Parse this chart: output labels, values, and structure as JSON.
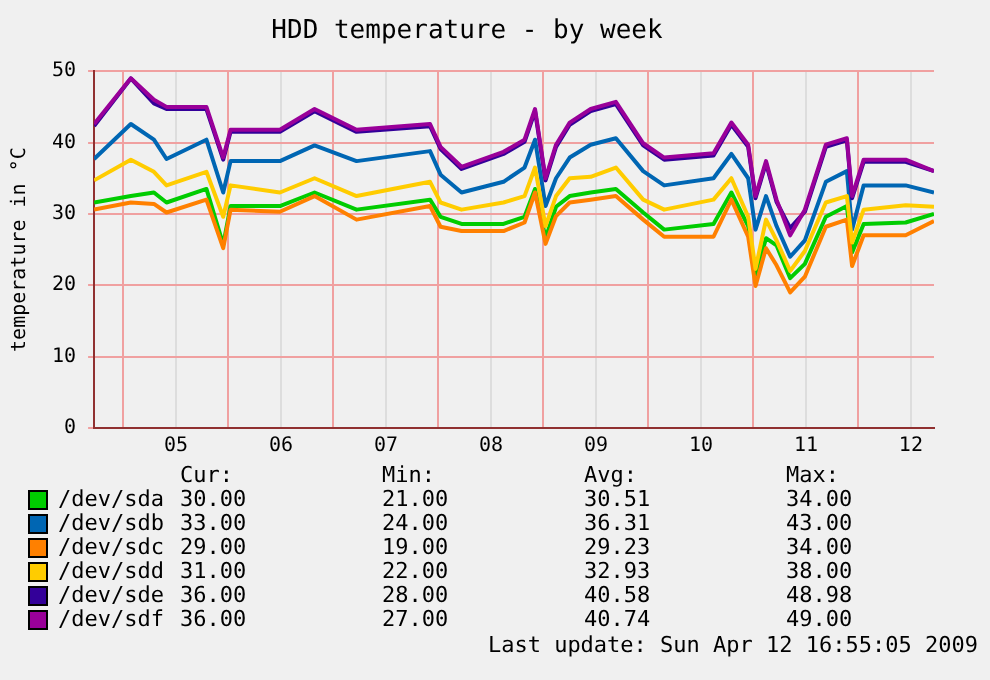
{
  "chart_data": {
    "type": "line",
    "title": "HDD temperature - by week",
    "ylabel": "temperature in °C",
    "x": [
      4.72,
      5.07,
      5.29,
      5.41,
      5.79,
      5.95,
      6.02,
      6.49,
      6.82,
      7.22,
      7.92,
      8.02,
      8.22,
      8.62,
      8.82,
      8.92,
      9.02,
      9.12,
      9.25,
      9.45,
      9.69,
      9.95,
      10.15,
      10.62,
      10.79,
      10.95,
      11.02,
      11.12,
      11.22,
      11.35,
      11.49,
      11.69,
      11.89,
      11.94,
      12.05,
      12.45,
      12.72
    ],
    "series": [
      {
        "name": "/dev/sda",
        "color": "#00cc00",
        "values": [
          31.6,
          32.5,
          33,
          31.6,
          33.5,
          25.7,
          31.1,
          31.1,
          33,
          30.6,
          32,
          29.6,
          28.6,
          28.6,
          29.6,
          33.5,
          26.6,
          31,
          32.5,
          33,
          33.5,
          30.2,
          27.8,
          28.6,
          33,
          28.3,
          21.2,
          26.6,
          25.6,
          21,
          23,
          29.6,
          31.1,
          24.6,
          28.6,
          28.8,
          30
        ]
      },
      {
        "name": "/dev/sdb",
        "color": "#0066b3",
        "values": [
          37.7,
          42.6,
          40.4,
          37.7,
          40.4,
          33,
          37.4,
          37.4,
          39.6,
          37.4,
          38.8,
          35.5,
          33,
          34.5,
          36.5,
          40.4,
          31.1,
          35,
          37.9,
          39.7,
          40.6,
          36,
          34,
          35,
          38.4,
          35,
          27.8,
          32.5,
          28.3,
          24,
          26.3,
          34.5,
          36,
          27.8,
          34,
          34,
          33
        ]
      },
      {
        "name": "/dev/sdc",
        "color": "#ff8000",
        "values": [
          30.6,
          31.6,
          31.4,
          30.2,
          32,
          25.2,
          30.6,
          30.3,
          32.5,
          29.2,
          31.1,
          28.2,
          27.6,
          27.6,
          28.8,
          33,
          25.8,
          29.7,
          31.6,
          32,
          32.5,
          29.2,
          26.8,
          26.8,
          32,
          26.8,
          19.9,
          25.2,
          22.8,
          19,
          21.2,
          28.2,
          29.2,
          22.7,
          27,
          27,
          29
        ]
      },
      {
        "name": "/dev/sdd",
        "color": "#ffcc00",
        "values": [
          34.7,
          37.6,
          35.9,
          34,
          35.9,
          29.6,
          34,
          33,
          35,
          32.5,
          34.5,
          31.6,
          30.6,
          31.6,
          32.5,
          36.5,
          28.3,
          32.5,
          35,
          35.2,
          36.5,
          32,
          30.6,
          32,
          35,
          29.6,
          22.3,
          29.2,
          26.3,
          22,
          24.8,
          31.6,
          32.5,
          26,
          30.6,
          31.2,
          31
        ]
      },
      {
        "name": "/dev/sde",
        "color": "#330099",
        "values": [
          42.3,
          48.98,
          45.5,
          44.7,
          44.7,
          37.6,
          41.5,
          41.5,
          44.4,
          41.5,
          42.3,
          39.1,
          36.3,
          38.4,
          40.1,
          44.4,
          34.7,
          39.4,
          42.5,
          44.4,
          45.4,
          39.6,
          37.6,
          38.2,
          42.5,
          39.4,
          32.2,
          37.1,
          31.7,
          28,
          30.3,
          39.4,
          40.3,
          32.2,
          37.3,
          37.3,
          36
        ]
      },
      {
        "name": "/dev/sdf",
        "color": "#990099",
        "values": [
          42.6,
          49,
          46,
          45,
          45,
          37.9,
          41.8,
          41.8,
          44.7,
          41.8,
          42.6,
          39.4,
          36.6,
          38.7,
          40.4,
          44.7,
          35,
          39.7,
          42.8,
          44.7,
          45.7,
          39.9,
          37.9,
          38.5,
          42.8,
          39.7,
          32.5,
          37.4,
          32,
          27,
          30.6,
          39.7,
          40.6,
          32.5,
          37.6,
          37.6,
          36
        ]
      }
    ],
    "xlim": [
      4.72,
      12.72
    ],
    "xticks": [
      {
        "value": 5,
        "label": null
      },
      {
        "value": 5.5,
        "label": "05"
      },
      {
        "value": 6,
        "label": null
      },
      {
        "value": 6.5,
        "label": "06"
      },
      {
        "value": 7,
        "label": null
      },
      {
        "value": 7.5,
        "label": "07"
      },
      {
        "value": 8,
        "label": null
      },
      {
        "value": 8.5,
        "label": "08"
      },
      {
        "value": 9,
        "label": null
      },
      {
        "value": 9.5,
        "label": "09"
      },
      {
        "value": 10,
        "label": null
      },
      {
        "value": 10.5,
        "label": "10"
      },
      {
        "value": 11,
        "label": null
      },
      {
        "value": 11.5,
        "label": "11"
      },
      {
        "value": 12,
        "label": null
      },
      {
        "value": 12.5,
        "label": "12"
      }
    ],
    "ylim": [
      0,
      50
    ],
    "yticks": [
      0,
      10,
      20,
      30,
      40,
      50
    ],
    "grid": true,
    "legend": "bottom",
    "marker": "none",
    "line_style": "solid",
    "annotations": [
      "Cur:",
      "Min:",
      "Avg:",
      "Max:",
      "30.00",
      "21.00",
      "30.51",
      "34.00",
      "33.00",
      "24.00",
      "36.31",
      "43.00",
      "29.00",
      "19.00",
      "29.23",
      "34.00",
      "31.00",
      "22.00",
      "32.93",
      "38.00",
      "36.00",
      "28.00",
      "40.58",
      "48.98",
      "36.00",
      "27.00",
      "40.74",
      "49.00",
      "Last update: Sun Apr 12 16:55:05 2009"
    ]
  }
}
